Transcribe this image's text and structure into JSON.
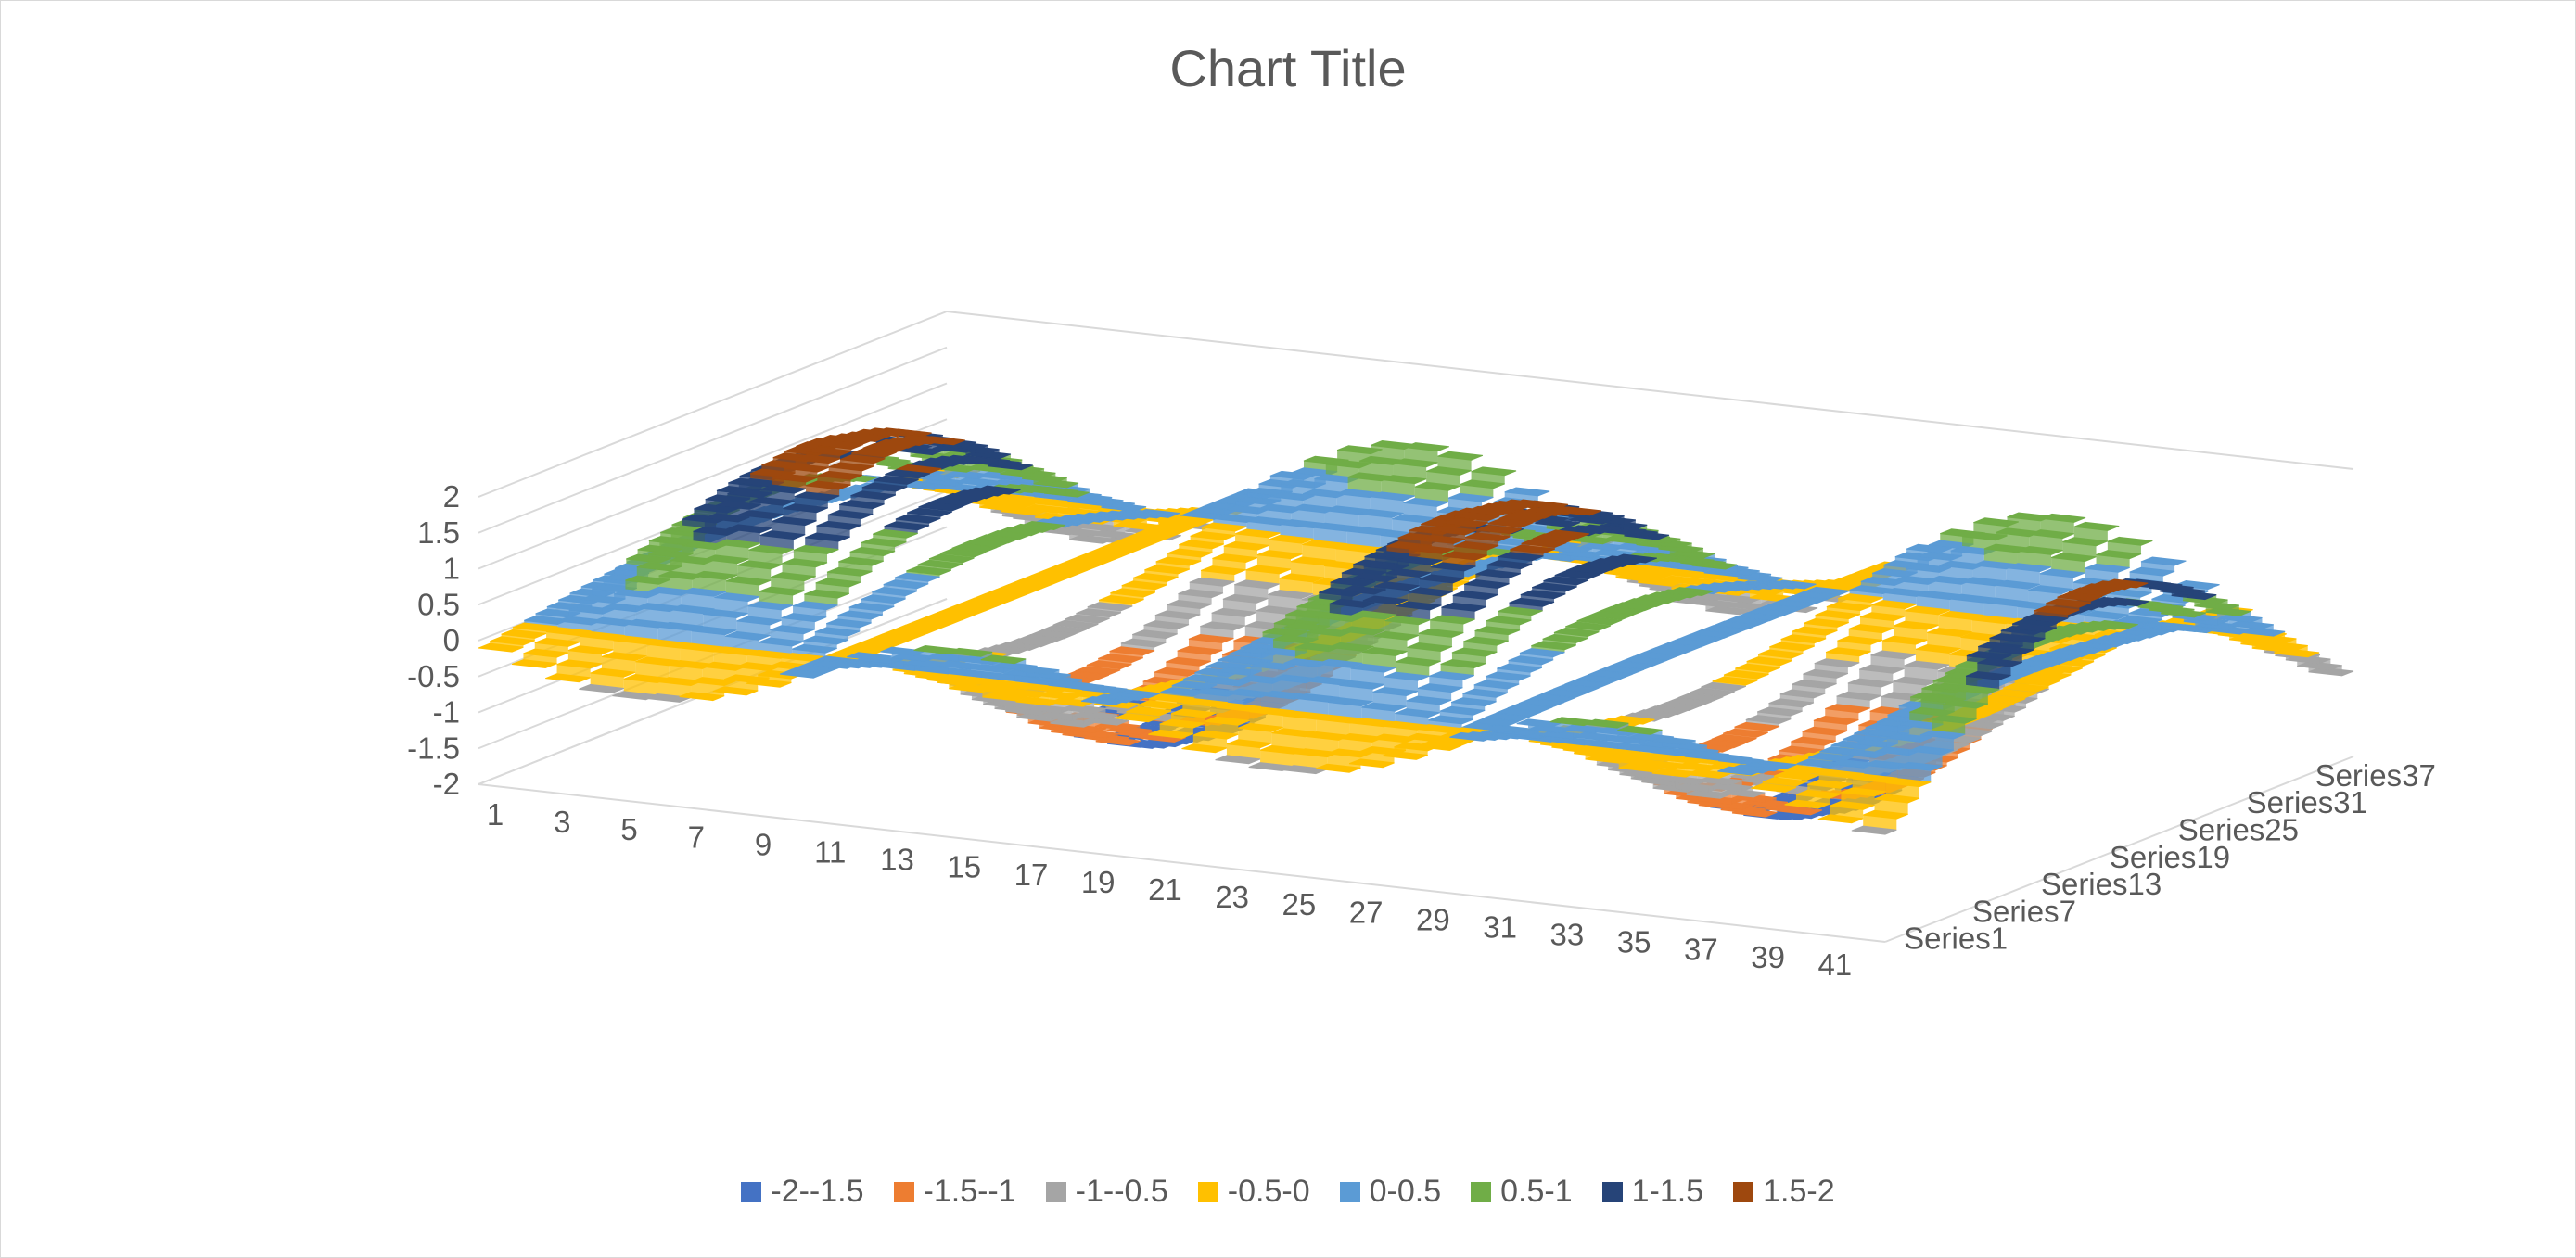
{
  "chart_data": {
    "type": "surface",
    "title": "Chart Title",
    "z_axis": {
      "ticks": [
        "2",
        "1.5",
        "1",
        "0.5",
        "0",
        "-0.5",
        "-1",
        "-1.5",
        "-2"
      ],
      "range": [
        -2,
        2
      ]
    },
    "x_axis": {
      "ticks": [
        "1",
        "3",
        "5",
        "7",
        "9",
        "11",
        "13",
        "15",
        "17",
        "19",
        "21",
        "23",
        "25",
        "27",
        "29",
        "31",
        "33",
        "35",
        "37",
        "39",
        "41"
      ],
      "range": [
        1,
        42
      ]
    },
    "y_axis": {
      "ticks": [
        "Series1",
        "Series7",
        "Series13",
        "Series19",
        "Series25",
        "Series31",
        "Series37"
      ],
      "series_count": 41
    },
    "grid": true,
    "legend_position": "bottom",
    "bands": [
      {
        "label": "-2--1.5",
        "color": "#4472c4",
        "min": -2,
        "max": -1.5
      },
      {
        "label": "-1.5--1",
        "color": "#ed7d31",
        "min": -1.5,
        "max": -1
      },
      {
        "label": "-1--0.5",
        "color": "#a5a5a5",
        "min": -1,
        "max": -0.5
      },
      {
        "label": "-0.5-0",
        "color": "#ffc000",
        "min": -0.5,
        "max": 0
      },
      {
        "label": "0-0.5",
        "color": "#5b9bd5",
        "min": 0,
        "max": 0.5
      },
      {
        "label": "0.5-1",
        "color": "#70ad47",
        "min": 0.5,
        "max": 1
      },
      {
        "label": "1-1.5",
        "color": "#264478",
        "min": 1,
        "max": 1.5
      },
      {
        "label": "1.5-2",
        "color": "#9e480e",
        "min": 1.5,
        "max": 2
      }
    ]
  }
}
